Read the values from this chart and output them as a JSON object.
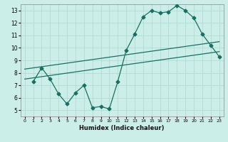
{
  "title": "",
  "xlabel": "Humidex (Indice chaleur)",
  "background_color": "#cceee8",
  "grid_color": "#aad8d0",
  "line_color": "#1a7060",
  "xlim": [
    -0.5,
    23.5
  ],
  "ylim": [
    4.5,
    13.5
  ],
  "xticks": [
    0,
    1,
    2,
    3,
    4,
    5,
    6,
    7,
    8,
    9,
    10,
    11,
    12,
    13,
    14,
    15,
    16,
    17,
    18,
    19,
    20,
    21,
    22,
    23
  ],
  "yticks": [
    5,
    6,
    7,
    8,
    9,
    10,
    11,
    12,
    13
  ],
  "line1_x": [
    1,
    2,
    3,
    4,
    5,
    6,
    7,
    8,
    9,
    10,
    11,
    12,
    13,
    14,
    15,
    16,
    17,
    18,
    19,
    20,
    21,
    22,
    23
  ],
  "line1_y": [
    7.3,
    8.4,
    7.5,
    6.3,
    5.5,
    6.4,
    7.0,
    5.2,
    5.3,
    5.1,
    7.3,
    9.8,
    11.1,
    12.5,
    13.0,
    12.8,
    12.9,
    13.4,
    13.0,
    12.4,
    11.1,
    10.2,
    9.3
  ],
  "line2_x": [
    0,
    23
  ],
  "line2_y": [
    8.3,
    10.5
  ],
  "line3_x": [
    0,
    23
  ],
  "line3_y": [
    7.5,
    9.7
  ],
  "markersize": 2.5,
  "linewidth": 0.9
}
